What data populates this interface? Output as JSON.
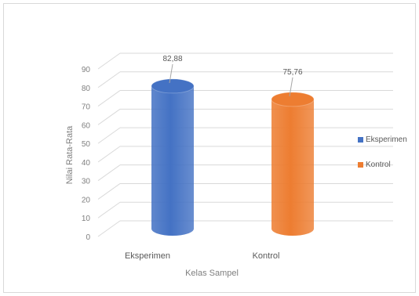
{
  "chart_data": {
    "type": "bar",
    "style": "3d-cylinder",
    "categories": [
      "Eksperimen",
      "Kontrol"
    ],
    "series": [
      {
        "name": "Eksperimen",
        "values": [
          82.88,
          null
        ],
        "color": "#4472C4"
      },
      {
        "name": "Kontrol",
        "values": [
          null,
          75.76
        ],
        "color": "#ED7D31"
      }
    ],
    "data_labels": [
      "82,88",
      "75,76"
    ],
    "yticks": [
      "0",
      "10",
      "20",
      "30",
      "40",
      "50",
      "60",
      "70",
      "80",
      "90"
    ],
    "ylim": [
      0,
      90
    ],
    "title": "",
    "xlabel": "Kelas Sampel",
    "ylabel": "Nilai Rata-Rata",
    "grid": true,
    "legend_position": "right"
  }
}
